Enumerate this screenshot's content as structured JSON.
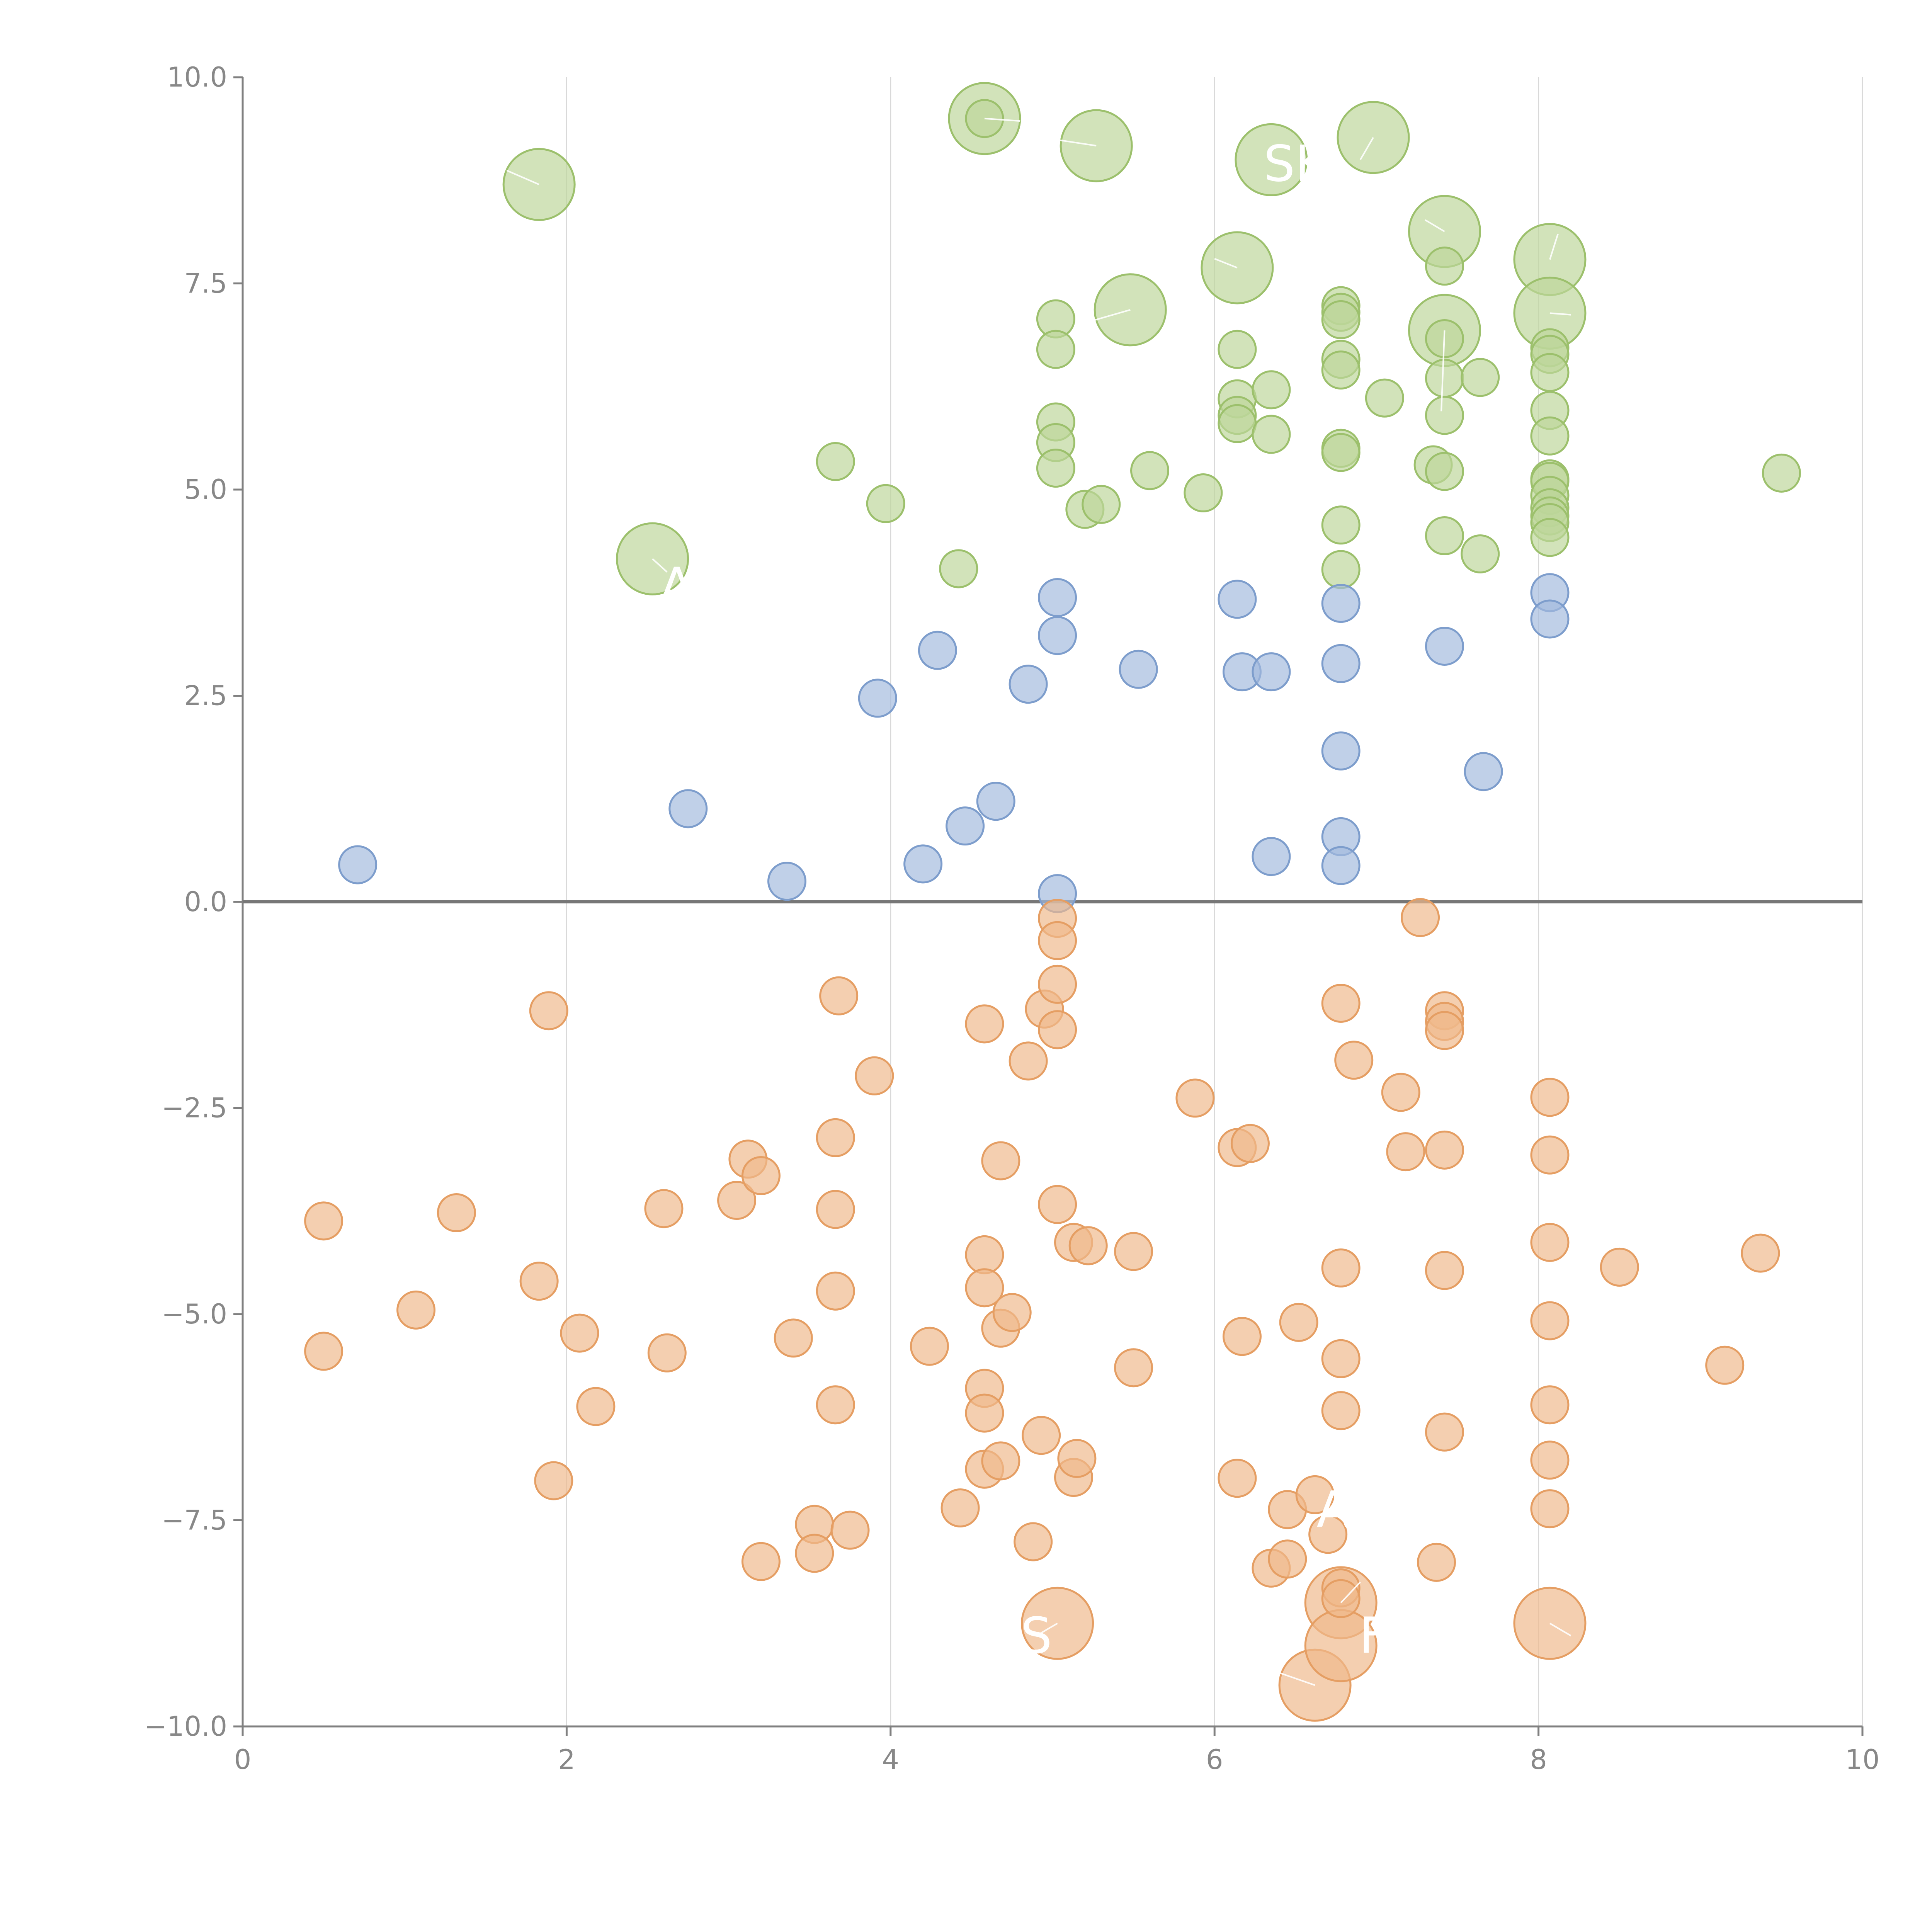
{
  "chart_data": {
    "type": "scatter",
    "title": "",
    "xlabel": "",
    "ylabel": "",
    "xlim": [
      0,
      10
    ],
    "ylim": [
      -10,
      10
    ],
    "grid": "vertical",
    "legend": "none",
    "x_ticks": [
      0,
      2,
      4,
      6,
      8,
      10
    ],
    "x_tick_labels": [
      "0",
      "2",
      "4",
      "6",
      "8",
      "10"
    ],
    "y_ticks": [
      10,
      7.5,
      5,
      2.5,
      0,
      -2.5,
      -5,
      -7.5,
      -10
    ],
    "y_tick_labels": [
      "10.0",
      "7.5",
      "5.0",
      "2.5",
      "0.0",
      "−2.5",
      "−5.0",
      "−7.5",
      "−10.0"
    ],
    "colors": {
      "green_fill": "#bcd59a",
      "green_stroke": "#9cc06c",
      "blue_fill": "#a2b9dd",
      "blue_stroke": "#7d9dcc",
      "orange_fill": "#efb88a",
      "orange_stroke": "#e59e63"
    },
    "series": [
      {
        "name": "green",
        "color": "green",
        "points": [
          [
            4.58,
            9.5,
            "s"
          ],
          [
            5.02,
            7.07,
            "s"
          ],
          [
            5.02,
            6.7,
            "s"
          ],
          [
            5.02,
            5.82,
            "s"
          ],
          [
            5.02,
            5.57,
            "s"
          ],
          [
            5.02,
            5.26,
            "s"
          ],
          [
            3.66,
            5.34,
            "s"
          ],
          [
            3.97,
            4.83,
            "s"
          ],
          [
            4.42,
            4.04,
            "s"
          ],
          [
            5.2,
            4.76,
            "s"
          ],
          [
            5.3,
            4.82,
            "s"
          ],
          [
            5.6,
            5.23,
            "s"
          ],
          [
            5.93,
            4.96,
            "s"
          ],
          [
            6.14,
            6.7,
            "s"
          ],
          [
            6.14,
            6.1,
            "s"
          ],
          [
            6.14,
            5.9,
            "s"
          ],
          [
            6.14,
            5.8,
            "s"
          ],
          [
            6.35,
            6.21,
            "s"
          ],
          [
            6.35,
            5.67,
            "s"
          ],
          [
            6.78,
            7.23,
            "s"
          ],
          [
            6.78,
            7.15,
            "s"
          ],
          [
            6.78,
            7.06,
            "s"
          ],
          [
            6.78,
            6.58,
            "s"
          ],
          [
            6.78,
            6.45,
            "s"
          ],
          [
            6.78,
            5.5,
            "s"
          ],
          [
            6.78,
            5.45,
            "s"
          ],
          [
            6.78,
            4.57,
            "s"
          ],
          [
            6.78,
            4.03,
            "s"
          ],
          [
            7.05,
            6.11,
            "s"
          ],
          [
            7.42,
            7.71,
            "s"
          ],
          [
            7.42,
            6.83,
            "s"
          ],
          [
            7.42,
            6.35,
            "s"
          ],
          [
            7.42,
            5.9,
            "s"
          ],
          [
            7.35,
            5.3,
            "s"
          ],
          [
            7.42,
            5.22,
            "s"
          ],
          [
            7.42,
            4.44,
            "s"
          ],
          [
            7.64,
            6.36,
            "s"
          ],
          [
            7.64,
            4.22,
            "s"
          ],
          [
            8.07,
            6.72,
            "s"
          ],
          [
            8.07,
            6.64,
            "s"
          ],
          [
            8.07,
            6.42,
            "s"
          ],
          [
            8.07,
            5.96,
            "s"
          ],
          [
            8.07,
            5.65,
            "s"
          ],
          [
            8.07,
            5.13,
            "s"
          ],
          [
            8.07,
            5.1,
            "s"
          ],
          [
            8.07,
            4.93,
            "s"
          ],
          [
            8.07,
            4.78,
            "s"
          ],
          [
            8.07,
            4.68,
            "s"
          ],
          [
            8.07,
            4.6,
            "s"
          ],
          [
            8.07,
            4.42,
            "s"
          ],
          [
            9.5,
            5.2,
            "s"
          ],
          [
            1.83,
            8.7,
            "L"
          ],
          [
            4.58,
            9.5,
            "L"
          ],
          [
            5.27,
            9.17,
            "L"
          ],
          [
            6.35,
            9.0,
            "L"
          ],
          [
            6.98,
            9.27,
            "L"
          ],
          [
            7.42,
            8.13,
            "L"
          ],
          [
            8.07,
            7.79,
            "L"
          ],
          [
            6.14,
            7.69,
            "L"
          ],
          [
            5.48,
            7.18,
            "L"
          ],
          [
            7.42,
            6.93,
            "L"
          ],
          [
            8.07,
            7.14,
            "L"
          ],
          [
            2.53,
            4.16,
            "L"
          ]
        ]
      },
      {
        "name": "blue",
        "color": "blue",
        "points": [
          [
            0.71,
            0.45,
            "s"
          ],
          [
            2.75,
            1.13,
            "s"
          ],
          [
            3.36,
            0.25,
            "s"
          ],
          [
            3.92,
            2.47,
            "s"
          ],
          [
            4.2,
            0.46,
            "s"
          ],
          [
            4.29,
            3.05,
            "s"
          ],
          [
            4.46,
            0.92,
            "s"
          ],
          [
            4.65,
            1.22,
            "s"
          ],
          [
            4.85,
            2.64,
            "s"
          ],
          [
            5.03,
            3.69,
            "s"
          ],
          [
            5.03,
            3.23,
            "s"
          ],
          [
            5.03,
            0.1,
            "s"
          ],
          [
            5.53,
            2.82,
            "s"
          ],
          [
            6.14,
            3.67,
            "s"
          ],
          [
            6.17,
            2.79,
            "s"
          ],
          [
            6.35,
            2.79,
            "s"
          ],
          [
            6.35,
            0.55,
            "s"
          ],
          [
            6.78,
            3.62,
            "s"
          ],
          [
            6.78,
            2.89,
            "s"
          ],
          [
            6.78,
            1.83,
            "s"
          ],
          [
            6.78,
            0.79,
            "s"
          ],
          [
            6.78,
            0.44,
            "s"
          ],
          [
            7.42,
            3.1,
            "s"
          ],
          [
            7.66,
            1.58,
            "s"
          ],
          [
            8.07,
            3.75,
            "s"
          ],
          [
            8.07,
            3.43,
            "s"
          ]
        ]
      },
      {
        "name": "orange",
        "color": "orange",
        "points": [
          [
            0.5,
            -3.87,
            "s"
          ],
          [
            0.5,
            -5.45,
            "s"
          ],
          [
            1.07,
            -4.95,
            "s"
          ],
          [
            1.32,
            -3.77,
            "s"
          ],
          [
            1.83,
            -4.6,
            "s"
          ],
          [
            1.89,
            -1.32,
            "s"
          ],
          [
            1.92,
            -7.02,
            "s"
          ],
          [
            2.08,
            -5.23,
            "s"
          ],
          [
            2.18,
            -6.12,
            "s"
          ],
          [
            2.6,
            -3.72,
            "s"
          ],
          [
            2.62,
            -5.47,
            "s"
          ],
          [
            3.05,
            -3.62,
            "s"
          ],
          [
            3.12,
            -3.12,
            "s"
          ],
          [
            3.2,
            -3.32,
            "s"
          ],
          [
            3.2,
            -8.0,
            "s"
          ],
          [
            3.4,
            -5.29,
            "s"
          ],
          [
            3.53,
            -7.55,
            "s"
          ],
          [
            3.53,
            -7.9,
            "s"
          ],
          [
            3.66,
            -2.86,
            "s"
          ],
          [
            3.66,
            -3.73,
            "s"
          ],
          [
            3.66,
            -4.72,
            "s"
          ],
          [
            3.66,
            -6.1,
            "s"
          ],
          [
            3.68,
            -1.14,
            "s"
          ],
          [
            3.75,
            -7.62,
            "s"
          ],
          [
            3.9,
            -2.11,
            "s"
          ],
          [
            4.24,
            -5.39,
            "s"
          ],
          [
            4.43,
            -7.35,
            "s"
          ],
          [
            4.58,
            -1.48,
            "s"
          ],
          [
            4.58,
            -4.28,
            "s"
          ],
          [
            4.58,
            -4.68,
            "s"
          ],
          [
            4.58,
            -5.9,
            "s"
          ],
          [
            4.58,
            -6.2,
            "s"
          ],
          [
            4.58,
            -6.88,
            "s"
          ],
          [
            4.68,
            -3.14,
            "s"
          ],
          [
            4.68,
            -5.17,
            "s"
          ],
          [
            4.68,
            -6.78,
            "s"
          ],
          [
            4.75,
            -4.98,
            "s"
          ],
          [
            4.85,
            -1.93,
            "s"
          ],
          [
            4.88,
            -7.76,
            "s"
          ],
          [
            4.93,
            -6.47,
            "s"
          ],
          [
            4.95,
            -1.3,
            "s"
          ],
          [
            5.03,
            -0.2,
            "s"
          ],
          [
            5.03,
            -0.47,
            "s"
          ],
          [
            5.03,
            -1.0,
            "s"
          ],
          [
            5.03,
            -1.55,
            "s"
          ],
          [
            5.03,
            -3.67,
            "s"
          ],
          [
            5.13,
            -4.13,
            "s"
          ],
          [
            5.13,
            -6.98,
            "s"
          ],
          [
            5.15,
            -6.75,
            "s"
          ],
          [
            5.22,
            -4.17,
            "s"
          ],
          [
            5.5,
            -4.24,
            "s"
          ],
          [
            5.5,
            -5.65,
            "s"
          ],
          [
            5.88,
            -2.38,
            "s"
          ],
          [
            6.14,
            -2.98,
            "s"
          ],
          [
            6.14,
            -6.99,
            "s"
          ],
          [
            6.17,
            -5.27,
            "s"
          ],
          [
            6.22,
            -2.93,
            "s"
          ],
          [
            6.35,
            -8.08,
            "s"
          ],
          [
            6.45,
            -7.37,
            "s"
          ],
          [
            6.45,
            -7.97,
            "s"
          ],
          [
            6.52,
            -5.1,
            "s"
          ],
          [
            6.62,
            -7.19,
            "s"
          ],
          [
            6.7,
            -7.67,
            "s"
          ],
          [
            6.78,
            -1.23,
            "s"
          ],
          [
            6.78,
            -4.44,
            "s"
          ],
          [
            6.78,
            -5.54,
            "s"
          ],
          [
            6.78,
            -6.17,
            "s"
          ],
          [
            6.78,
            -8.32,
            "s"
          ],
          [
            6.78,
            -8.45,
            "s"
          ],
          [
            6.86,
            -1.92,
            "s"
          ],
          [
            7.15,
            -2.31,
            "s"
          ],
          [
            7.18,
            -3.03,
            "s"
          ],
          [
            7.27,
            -0.19,
            "s"
          ],
          [
            7.37,
            -8.01,
            "s"
          ],
          [
            7.42,
            -1.32,
            "s"
          ],
          [
            7.42,
            -1.45,
            "s"
          ],
          [
            7.42,
            -1.56,
            "s"
          ],
          [
            7.42,
            -3.01,
            "s"
          ],
          [
            7.42,
            -4.47,
            "s"
          ],
          [
            7.42,
            -6.43,
            "s"
          ],
          [
            8.07,
            -2.37,
            "s"
          ],
          [
            8.07,
            -3.07,
            "s"
          ],
          [
            8.07,
            -4.13,
            "s"
          ],
          [
            8.07,
            -5.08,
            "s"
          ],
          [
            8.07,
            -6.1,
            "s"
          ],
          [
            8.07,
            -6.77,
            "s"
          ],
          [
            8.07,
            -7.36,
            "s"
          ],
          [
            8.5,
            -4.43,
            "s"
          ],
          [
            9.15,
            -5.62,
            "s"
          ],
          [
            9.37,
            -4.26,
            "s"
          ],
          [
            5.03,
            -8.75,
            "L"
          ],
          [
            6.62,
            -9.5,
            "L"
          ],
          [
            6.78,
            -8.5,
            "L"
          ],
          [
            6.78,
            -9.02,
            "L"
          ],
          [
            8.07,
            -8.75,
            "L"
          ]
        ]
      }
    ],
    "annotations": [
      {
        "text": "SK",
        "x": 6.5,
        "y": 8.95
      },
      {
        "text": "A",
        "x": 2.68,
        "y": 3.83
      },
      {
        "text": "AL",
        "x": 6.82,
        "y": -7.37
      },
      {
        "text": "F",
        "x": 6.98,
        "y": -8.9
      },
      {
        "text": "S",
        "x": 4.9,
        "y": -8.9
      }
    ],
    "leaders": [
      [
        1.83,
        8.7,
        1.63,
        8.87
      ],
      [
        4.58,
        9.5,
        4.8,
        9.47
      ],
      [
        5.27,
        9.17,
        5.0,
        9.25
      ],
      [
        6.98,
        9.27,
        6.9,
        9.0
      ],
      [
        7.42,
        8.13,
        7.3,
        8.27
      ],
      [
        8.07,
        7.79,
        8.12,
        8.1
      ],
      [
        6.14,
        7.69,
        6.0,
        7.8
      ],
      [
        5.48,
        7.18,
        5.25,
        7.05
      ],
      [
        8.07,
        7.14,
        8.2,
        7.12
      ],
      [
        7.42,
        6.93,
        7.4,
        5.95
      ],
      [
        2.53,
        4.16,
        2.62,
        4.0
      ],
      [
        5.03,
        -8.75,
        4.9,
        -8.9
      ],
      [
        6.62,
        -9.5,
        6.4,
        -9.35
      ],
      [
        6.78,
        -8.5,
        6.9,
        -8.25
      ],
      [
        8.07,
        -8.75,
        8.2,
        -8.9
      ]
    ]
  }
}
